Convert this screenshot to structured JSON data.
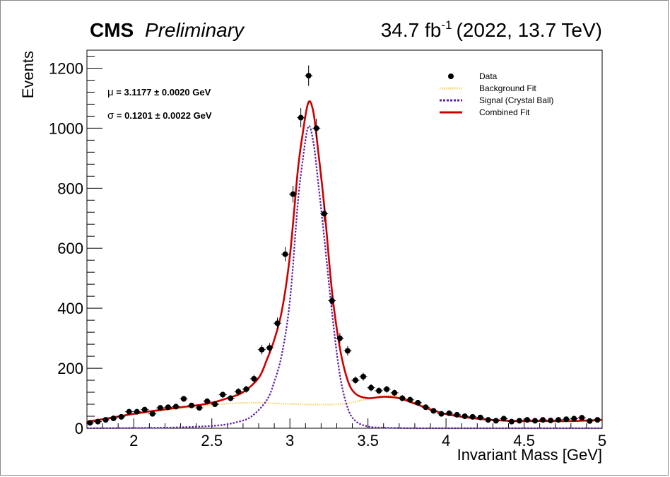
{
  "header": {
    "experiment": "CMS",
    "status": "Preliminary",
    "lumi_value": "34.7 fb",
    "lumi_exp": "-1",
    "run_info": "(2022, 13.7 TeV)"
  },
  "annotations": {
    "mu_symbol": "μ",
    "mu_text": " = 3.1177 ± 0.0020 GeV",
    "sigma_symbol": "σ",
    "sigma_text": " = 0.1201 ± 0.0022 GeV"
  },
  "legend": {
    "data": "Data",
    "background": "Background Fit",
    "signal": "Signal (Crystal Ball)",
    "combined": "Combined Fit"
  },
  "colors": {
    "data": "#000000",
    "background": "#f5d36a",
    "signal": "#5b1fa8",
    "combined": "#cc0000"
  },
  "chart_data": {
    "type": "scatter",
    "xlabel": "Invariant Mass [GeV]",
    "ylabel": "Events",
    "xlim": [
      1.7,
      5.0
    ],
    "ylim": [
      0,
      1260
    ],
    "x_ticks": [
      "2",
      "2.5",
      "3",
      "3.5",
      "4",
      "4.5",
      "5"
    ],
    "y_ticks": [
      "0",
      "200",
      "400",
      "600",
      "800",
      "1000",
      "1200"
    ],
    "legend_position": "top-right",
    "series": [
      {
        "name": "Data",
        "style": "points-with-errors",
        "x": [
          1.72,
          1.77,
          1.82,
          1.87,
          1.92,
          1.97,
          2.02,
          2.07,
          2.12,
          2.17,
          2.22,
          2.27,
          2.32,
          2.37,
          2.42,
          2.47,
          2.52,
          2.57,
          2.62,
          2.67,
          2.72,
          2.77,
          2.82,
          2.87,
          2.92,
          2.97,
          3.02,
          3.07,
          3.12,
          3.17,
          3.22,
          3.27,
          3.32,
          3.37,
          3.42,
          3.47,
          3.52,
          3.57,
          3.62,
          3.67,
          3.72,
          3.77,
          3.82,
          3.87,
          3.92,
          3.97,
          4.02,
          4.07,
          4.12,
          4.17,
          4.22,
          4.27,
          4.32,
          4.37,
          4.42,
          4.47,
          4.52,
          4.57,
          4.62,
          4.67,
          4.72,
          4.77,
          4.82,
          4.87,
          4.92,
          4.97
        ],
        "y": [
          18,
          22,
          28,
          33,
          38,
          55,
          55,
          62,
          48,
          68,
          70,
          72,
          98,
          76,
          68,
          90,
          80,
          112,
          100,
          122,
          130,
          165,
          262,
          268,
          350,
          580,
          780,
          1035,
          1175,
          1000,
          715,
          425,
          300,
          258,
          160,
          172,
          135,
          125,
          130,
          118,
          100,
          95,
          85,
          70,
          58,
          48,
          50,
          45,
          40,
          38,
          36,
          28,
          25,
          32,
          22,
          25,
          28,
          25,
          28,
          26,
          28,
          30,
          32,
          35,
          24,
          28
        ]
      },
      {
        "name": "Background Fit",
        "style": "dotted",
        "x": [
          1.7,
          1.85,
          2.0,
          2.15,
          2.3,
          2.45,
          2.6,
          2.75,
          2.9,
          3.05,
          3.2,
          3.3,
          3.4,
          3.5,
          3.6,
          3.7,
          3.8,
          3.9,
          4.0,
          4.2,
          4.4,
          4.6,
          4.8,
          5.0
        ],
        "y": [
          22,
          34,
          46,
          56,
          66,
          75,
          82,
          85,
          83,
          80,
          79,
          80,
          86,
          98,
          108,
          107,
          88,
          65,
          48,
          32,
          25,
          24,
          24,
          24
        ]
      },
      {
        "name": "Signal (Crystal Ball)",
        "style": "dotted",
        "x": [
          1.7,
          2.0,
          2.2,
          2.4,
          2.55,
          2.65,
          2.75,
          2.85,
          2.9,
          2.95,
          3.0,
          3.05,
          3.08,
          3.1177,
          3.15,
          3.18,
          3.22,
          3.27,
          3.32,
          3.37,
          3.42,
          3.5,
          3.6,
          3.8,
          4.0,
          4.5,
          5.0
        ],
        "y": [
          0,
          1,
          2,
          5,
          10,
          19,
          38,
          92,
          155,
          250,
          425,
          745,
          885,
          1005,
          955,
          825,
          635,
          385,
          178,
          68,
          24,
          6,
          2,
          0,
          0,
          0,
          0
        ]
      },
      {
        "name": "Combined Fit",
        "style": "solid",
        "x": [
          1.7,
          1.8,
          1.9,
          2.0,
          2.1,
          2.2,
          2.3,
          2.4,
          2.5,
          2.6,
          2.7,
          2.8,
          2.85,
          2.9,
          2.95,
          3.0,
          3.05,
          3.08,
          3.1177,
          3.15,
          3.18,
          3.22,
          3.27,
          3.32,
          3.37,
          3.42,
          3.5,
          3.6,
          3.7,
          3.8,
          3.9,
          4.0,
          4.2,
          4.4,
          4.6,
          4.8,
          5.0
        ],
        "y": [
          22,
          30,
          39,
          48,
          56,
          63,
          70,
          76,
          85,
          100,
          120,
          168,
          225,
          295,
          395,
          575,
          855,
          975,
          1085,
          1055,
          930,
          740,
          455,
          268,
          160,
          115,
          100,
          105,
          100,
          82,
          63,
          47,
          32,
          25,
          24,
          24,
          28
        ]
      }
    ]
  }
}
